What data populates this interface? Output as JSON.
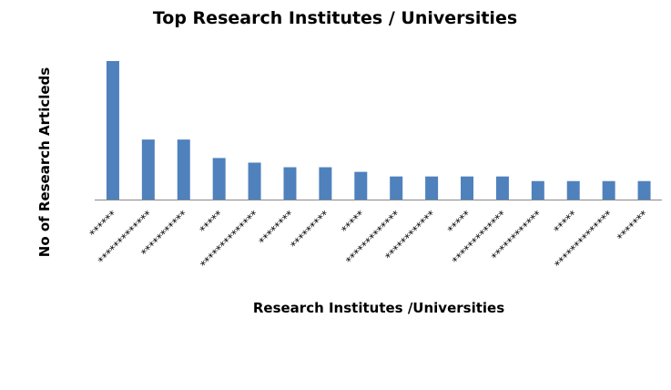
{
  "chart_data": {
    "type": "bar",
    "title": "Top Research Institutes / Universities",
    "x_label": "Research Institutes /Universities",
    "y_label": "No of Research Articleds",
    "categories": [
      "******",
      "*************",
      "***********",
      "*****",
      "**************",
      "********",
      "*********",
      "*****",
      "*************",
      "************",
      "*****",
      "*************",
      "************",
      "*****",
      "**************",
      "*******"
    ],
    "values": [
      30,
      13,
      13,
      9,
      8,
      7,
      7,
      6,
      5,
      5,
      5,
      5,
      4,
      4,
      4,
      4
    ],
    "color": "#4f81bd",
    "ylim": [
      0,
      30
    ]
  }
}
